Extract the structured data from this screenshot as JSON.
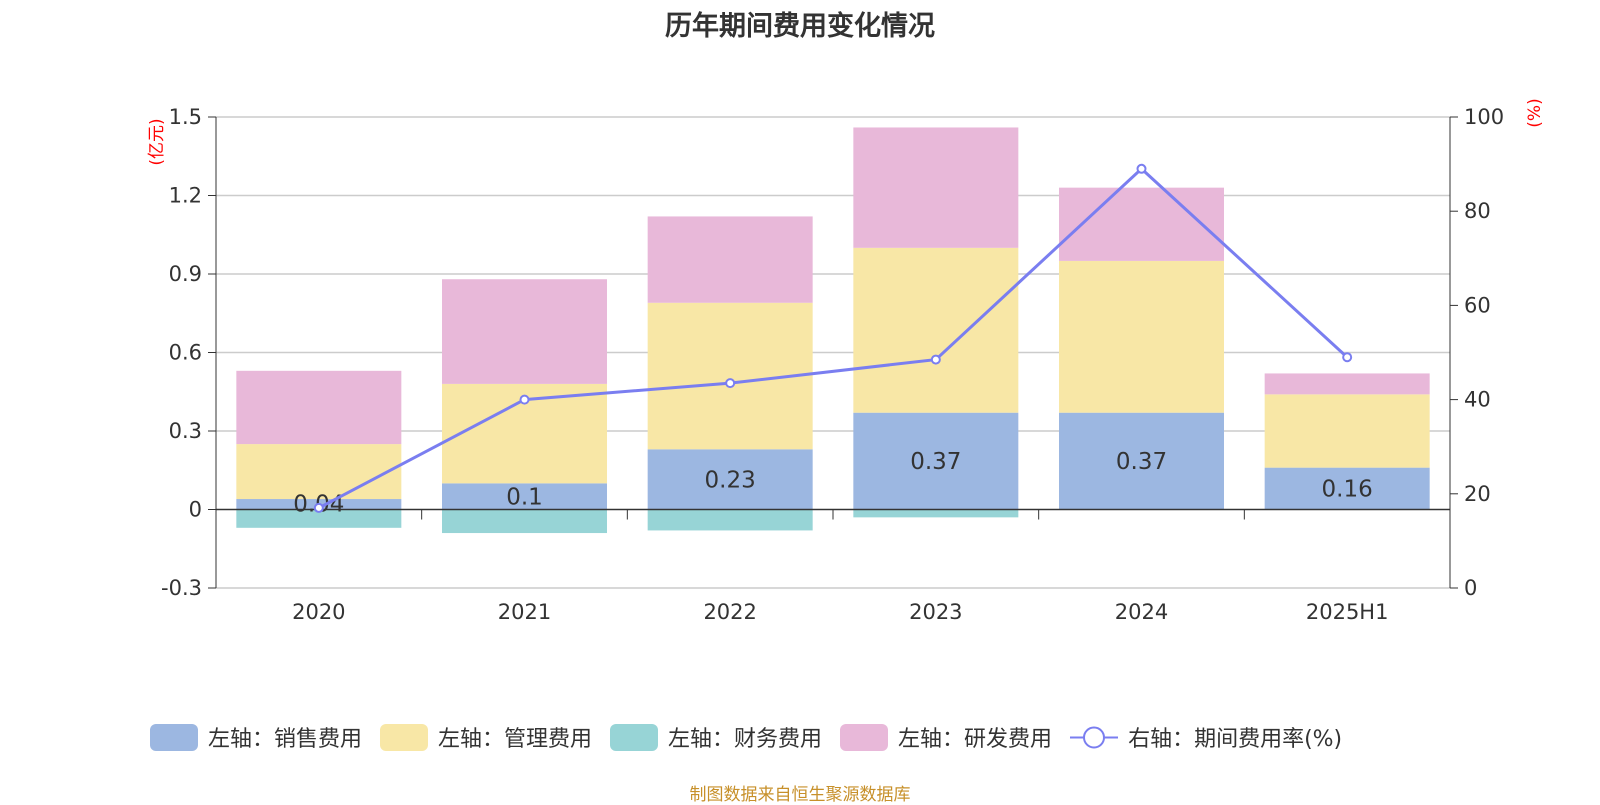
{
  "chart_data": {
    "type": "bar",
    "title": "历年期间费用变化情况",
    "categories": [
      "2020",
      "2021",
      "2022",
      "2023",
      "2024",
      "2025H1"
    ],
    "series": [
      {
        "name": "左轴：销售费用",
        "axis": "left",
        "color": "#9cb7e1",
        "values": [
          0.04,
          0.1,
          0.23,
          0.37,
          0.37,
          0.16
        ],
        "labels": [
          "0.04",
          "0.1",
          "0.23",
          "0.37",
          "0.37",
          "0.16"
        ]
      },
      {
        "name": "左轴：管理费用",
        "axis": "left",
        "color": "#f8e7a6",
        "values": [
          0.21,
          0.38,
          0.56,
          0.63,
          0.58,
          0.28
        ]
      },
      {
        "name": "左轴：财务费用",
        "axis": "left",
        "color": "#97d4d6",
        "values": [
          -0.07,
          -0.09,
          -0.08,
          -0.03,
          0.0,
          0.0
        ]
      },
      {
        "name": "左轴：研发费用",
        "axis": "left",
        "color": "#e8b8d9",
        "values": [
          0.28,
          0.4,
          0.33,
          0.46,
          0.28,
          0.08
        ]
      },
      {
        "name": "右轴：期间费用率(%)",
        "axis": "right",
        "type": "line",
        "color": "#7a7ef0",
        "values": [
          17,
          40,
          43.5,
          48.5,
          89,
          49
        ]
      }
    ],
    "left_axis": {
      "label": "(亿元)",
      "min": -0.3,
      "max": 1.5,
      "ticks": [
        -0.3,
        0,
        0.3,
        0.6,
        0.9,
        1.2,
        1.5
      ],
      "tick_labels": [
        "-0.3",
        "0",
        "0.3",
        "0.6",
        "0.9",
        "1.2",
        "1.5"
      ]
    },
    "right_axis": {
      "label": "(%)",
      "min": 0,
      "max": 100,
      "ticks": [
        0,
        20,
        40,
        60,
        80,
        100
      ],
      "tick_labels": [
        "0",
        "20",
        "40",
        "60",
        "80",
        "100"
      ]
    },
    "grid": true,
    "legend_position": "bottom"
  },
  "source_note": "制图数据来自恒生聚源数据库"
}
